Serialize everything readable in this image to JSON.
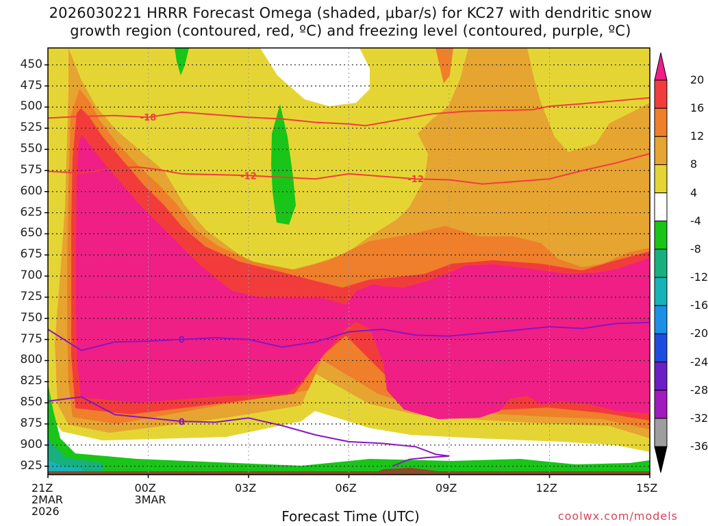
{
  "chart_data": {
    "type": "heatmap",
    "title_line1": "2026030221 HRRR Forecast Omega (shaded, μbar/s) for KC27 with dendritic snow",
    "title_line2": "growth region (contoured, red, ºC) and freezing level (contoured, purple, ºC)",
    "xlabel": "Forecast Time (UTC)",
    "y_levels": [
      450,
      475,
      500,
      525,
      550,
      575,
      600,
      625,
      650,
      675,
      700,
      725,
      750,
      775,
      800,
      825,
      850,
      875,
      900,
      925
    ],
    "ylim": [
      430,
      935
    ],
    "x_ticks": [
      {
        "label": "21Z",
        "sub1": "2MAR",
        "sub2": "2026",
        "hour": 0
      },
      {
        "label": "00Z",
        "sub1": "3MAR",
        "sub2": "",
        "hour": 3
      },
      {
        "label": "03Z",
        "sub1": "",
        "sub2": "",
        "hour": 6
      },
      {
        "label": "06Z",
        "sub1": "",
        "sub2": "",
        "hour": 9
      },
      {
        "label": "09Z",
        "sub1": "",
        "sub2": "",
        "hour": 12
      },
      {
        "label": "12Z",
        "sub1": "",
        "sub2": "",
        "hour": 15
      },
      {
        "label": "15Z",
        "sub1": "",
        "sub2": "",
        "hour": 18
      }
    ],
    "xlim": [
      0,
      18
    ],
    "colorbar": {
      "labels": [
        "20",
        "16",
        "12",
        "8",
        "4",
        "-4",
        "-8",
        "-12",
        "-16",
        "-20",
        "-24",
        "-28",
        "-32",
        "-36"
      ],
      "colors": [
        "#ef1f86",
        "#f23c3c",
        "#ef7f2a",
        "#e6a431",
        "#e5d534",
        "#ffffff",
        "#18c518",
        "#18b07f",
        "#17b3b8",
        "#1c8fe6",
        "#1d4de0",
        "#6a1fc7",
        "#a21bbf",
        "#9e9e9e"
      ]
    },
    "omega_fields": [
      {
        "level": "4",
        "color": "#e5d534"
      },
      {
        "level": "8",
        "color": "#e6a431"
      },
      {
        "level": "12",
        "color": "#ef7f2a"
      },
      {
        "level": "16",
        "color": "#f23c3c"
      },
      {
        "level": "20",
        "color": "#ef1f86"
      },
      {
        "level": "-4",
        "color": "#18c518"
      }
    ],
    "dgz_contours": [
      {
        "label": "-18",
        "color": "#f23c3c",
        "points": [
          [
            0,
            513
          ],
          [
            1,
            511
          ],
          [
            2,
            510
          ],
          [
            3,
            512
          ],
          [
            4,
            506
          ],
          [
            5,
            509
          ],
          [
            6,
            512
          ],
          [
            7,
            514
          ],
          [
            8,
            518
          ],
          [
            9,
            520
          ],
          [
            9.5,
            522
          ],
          [
            10.5,
            515
          ],
          [
            11.5,
            508
          ],
          [
            12.5,
            505
          ],
          [
            14.5,
            503
          ],
          [
            15,
            499
          ],
          [
            16,
            496
          ],
          [
            18,
            489
          ]
        ]
      },
      {
        "label": "-12",
        "color": "#f23c3c",
        "points": [
          [
            0,
            576
          ],
          [
            1,
            578
          ],
          [
            2,
            572
          ],
          [
            2.7,
            571
          ],
          [
            3.3,
            574
          ],
          [
            4,
            579
          ],
          [
            5,
            580
          ],
          [
            6,
            581
          ],
          [
            7,
            583
          ],
          [
            8,
            585
          ],
          [
            9,
            579
          ],
          [
            10,
            582
          ],
          [
            11,
            585
          ],
          [
            12,
            586
          ],
          [
            13,
            591
          ],
          [
            15,
            585
          ],
          [
            16,
            575
          ],
          [
            17,
            566
          ],
          [
            18,
            555
          ]
        ]
      }
    ],
    "freezing_contours": [
      {
        "label": "0",
        "color": "#8a14c2",
        "points": [
          [
            0,
            763
          ],
          [
            1,
            788
          ],
          [
            2,
            778
          ],
          [
            3,
            777
          ],
          [
            4,
            775
          ],
          [
            5,
            773
          ],
          [
            6,
            775
          ],
          [
            7,
            784
          ],
          [
            8,
            778
          ],
          [
            9,
            766
          ],
          [
            10,
            763
          ],
          [
            11,
            770
          ],
          [
            12,
            771
          ],
          [
            14,
            764
          ],
          [
            15,
            760
          ],
          [
            16,
            762
          ],
          [
            17,
            756
          ],
          [
            18,
            755
          ]
        ]
      },
      {
        "label": "0",
        "color": "#8a14c2",
        "points": [
          [
            0,
            848
          ],
          [
            1,
            843
          ],
          [
            2,
            864
          ],
          [
            3,
            868
          ],
          [
            4,
            872
          ],
          [
            5,
            873
          ],
          [
            6,
            868
          ],
          [
            7,
            877
          ],
          [
            8,
            888
          ],
          [
            9,
            896
          ],
          [
            10,
            898
          ],
          [
            11,
            902
          ],
          [
            11.6,
            911
          ],
          [
            12,
            913
          ],
          [
            11.3,
            915
          ],
          [
            10.8,
            917
          ],
          [
            10.3,
            925
          ]
        ]
      }
    ],
    "credit": "coolwx.com/models"
  }
}
